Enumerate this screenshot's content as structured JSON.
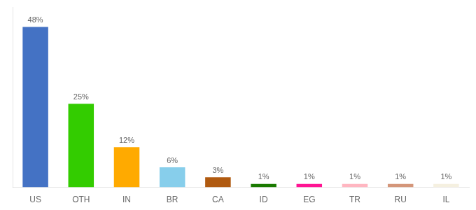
{
  "chart_data": {
    "type": "bar",
    "categories": [
      "US",
      "OTH",
      "IN",
      "BR",
      "CA",
      "ID",
      "EG",
      "TR",
      "RU",
      "IL"
    ],
    "values": [
      48,
      25,
      12,
      6,
      3,
      1,
      1,
      1,
      1,
      1
    ],
    "value_labels": [
      "48%",
      "25%",
      "12%",
      "6%",
      "3%",
      "1%",
      "1%",
      "1%",
      "1%",
      "1%"
    ],
    "data_labels": true,
    "colors": [
      "#4472c4",
      "#33cc00",
      "#ffaa00",
      "#87ceeb",
      "#b05a10",
      "#1a7a00",
      "#ff1493",
      "#ffb6c1",
      "#d4967a",
      "#f5f0e0"
    ],
    "ylim": [
      0,
      54
    ],
    "yticks": [],
    "tick_labels": "x",
    "grid": false
  }
}
